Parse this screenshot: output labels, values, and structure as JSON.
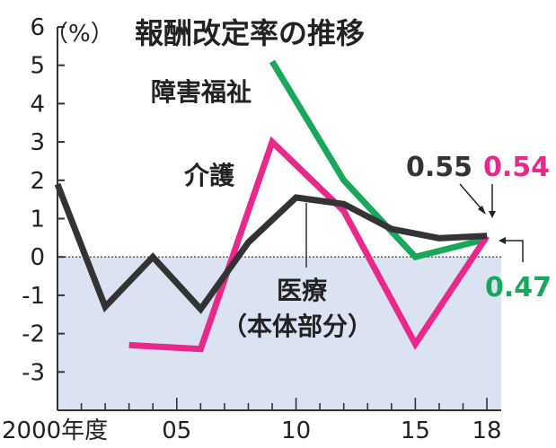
{
  "chart_data": {
    "type": "line",
    "title": "報酬改定率の推移",
    "ylabel": "（%）",
    "xlabel": "",
    "ylim": [
      -4,
      6
    ],
    "yticks": [
      6,
      5,
      4,
      3,
      2,
      1,
      0,
      -1,
      -2,
      -3
    ],
    "xlim": [
      2000,
      2018.6
    ],
    "xticks": [
      {
        "x": 2000,
        "label": "2000年度"
      },
      {
        "x": 2005,
        "label": "05"
      },
      {
        "x": 2010,
        "label": "10"
      },
      {
        "x": 2015,
        "label": "15"
      },
      {
        "x": 2018,
        "label": "18"
      }
    ],
    "negative_region_shaded": true,
    "grid": false,
    "colors": {
      "medical": "#333333",
      "care": "#e8288b",
      "welfare": "#17a85a",
      "shade": "#dbe3f2"
    },
    "series": [
      {
        "key": "medical",
        "name": "医療",
        "name2": "（本体部分）",
        "points": [
          [
            2000,
            1.9
          ],
          [
            2002,
            -1.3
          ],
          [
            2004,
            0.0
          ],
          [
            2006,
            -1.36
          ],
          [
            2008,
            0.38
          ],
          [
            2010,
            1.55
          ],
          [
            2012,
            1.38
          ],
          [
            2014,
            0.73
          ],
          [
            2016,
            0.49
          ],
          [
            2018,
            0.55
          ]
        ]
      },
      {
        "key": "care",
        "name": "介護",
        "points": [
          [
            2003,
            -2.3
          ],
          [
            2006,
            -2.4
          ],
          [
            2009,
            3.0
          ],
          [
            2012,
            1.2
          ],
          [
            2015,
            -2.27
          ],
          [
            2018,
            0.54
          ]
        ]
      },
      {
        "key": "welfare",
        "name": "障害福祉",
        "points": [
          [
            2009,
            5.1
          ],
          [
            2012,
            2.0
          ],
          [
            2015,
            0.0
          ],
          [
            2018,
            0.47
          ]
        ]
      }
    ],
    "annotations": [
      {
        "series": "medical",
        "text": "0.55",
        "x": 2018,
        "y": 0.55
      },
      {
        "series": "care",
        "text": "0.54",
        "x": 2018,
        "y": 0.54
      },
      {
        "series": "welfare",
        "text": "0.47",
        "x": 2018,
        "y": 0.47
      }
    ]
  }
}
